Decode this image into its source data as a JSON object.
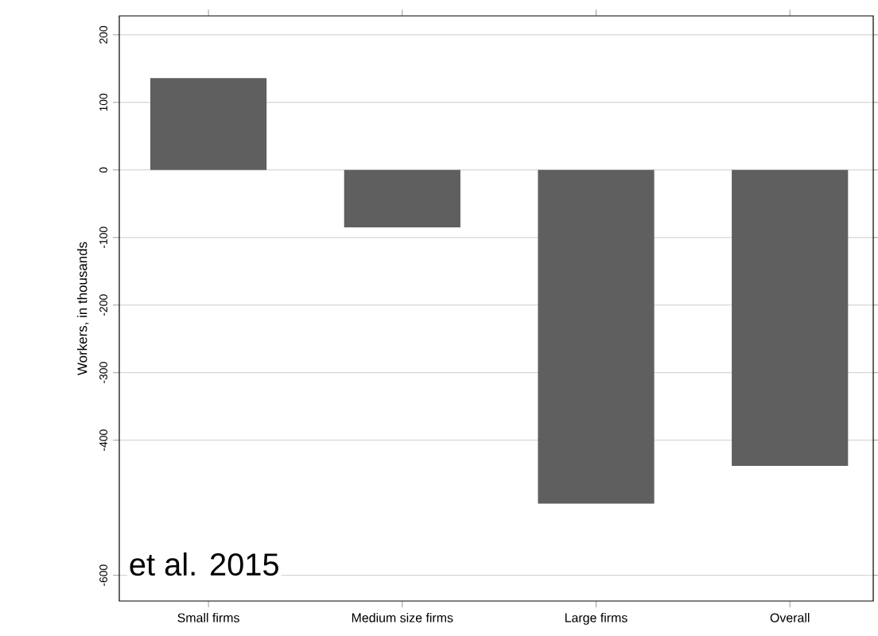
{
  "chart_data": {
    "type": "bar",
    "ylabel": "Workers, in thousands",
    "categories": [
      "Small firms",
      "Medium size firms",
      "Large firms",
      "Overall"
    ],
    "values": [
      136,
      -85,
      -494,
      -438
    ],
    "color": "#5f5f5f",
    "ylim": [
      -638,
      228
    ],
    "yticks": [
      -600,
      -400,
      -300,
      -200,
      -100,
      0,
      100,
      200
    ],
    "grid": "y",
    "annotations": [
      "et al. 2015"
    ]
  }
}
